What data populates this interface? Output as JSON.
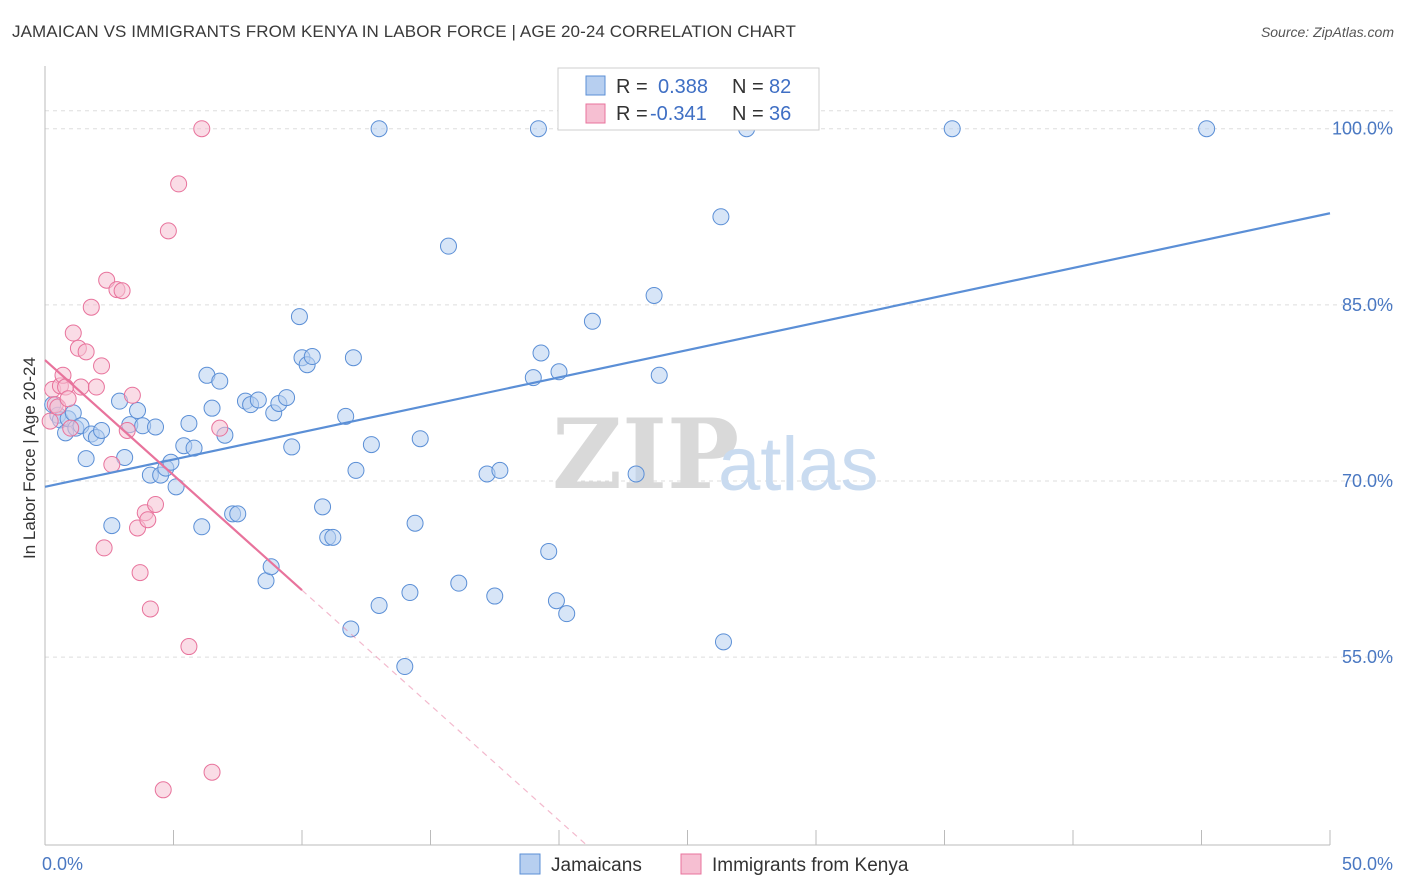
{
  "title": "JAMAICAN VS IMMIGRANTS FROM KENYA IN LABOR FORCE | AGE 20-24 CORRELATION CHART",
  "source": "Source: ZipAtlas.com",
  "watermark": {
    "zip": "ZIP",
    "atlas": "atlas"
  },
  "colors": {
    "blue": "#5b8fd6",
    "blue_fill": "#b7cff0",
    "pink": "#e8739c",
    "pink_fill": "#f6bfd2",
    "axis_label": "#4a78c2",
    "grid": "#dddddd"
  },
  "legend": {
    "items": [
      {
        "r_label": "R =",
        "r_value": "0.388",
        "n_label": "N =",
        "n_value": "82"
      },
      {
        "r_label": "R =",
        "r_value": "-0.341",
        "n_label": "N =",
        "n_value": "36"
      }
    ]
  },
  "bottom_legend": [
    "Jamaicans",
    "Immigrants from Kenya"
  ],
  "chart_data": {
    "type": "scatter",
    "title": "JAMAICAN VS IMMIGRANTS FROM KENYA IN LABOR FORCE | AGE 20-24 CORRELATION CHART",
    "xlabel": "",
    "ylabel": "In Labor Force | Age 20-24",
    "xlim": [
      0,
      50
    ],
    "ylim": [
      39,
      105
    ],
    "x_tick_labels": [
      {
        "value": 0,
        "label": "0.0%"
      },
      {
        "value": 50,
        "label": "50.0%"
      }
    ],
    "y_tick_labels": [
      {
        "value": 100,
        "label": "100.0%"
      },
      {
        "value": 85,
        "label": "85.0%"
      },
      {
        "value": 70,
        "label": "70.0%"
      },
      {
        "value": 55,
        "label": "55.0%"
      }
    ],
    "grid": true,
    "legend_position": "top-center",
    "series": [
      {
        "name": "Jamaicans",
        "color": "#5b8fd6",
        "trend": {
          "x": [
            0,
            50
          ],
          "y": [
            69.5,
            92.8
          ]
        },
        "points": [
          [
            0.3,
            76.5
          ],
          [
            0.5,
            75.6
          ],
          [
            0.6,
            75.2
          ],
          [
            0.8,
            74.1
          ],
          [
            0.9,
            75.3
          ],
          [
            1.1,
            75.8
          ],
          [
            1.2,
            74.5
          ],
          [
            1.4,
            74.7
          ],
          [
            1.6,
            71.9
          ],
          [
            1.8,
            74.0
          ],
          [
            2.0,
            73.7
          ],
          [
            2.2,
            74.3
          ],
          [
            2.6,
            66.2
          ],
          [
            2.9,
            76.8
          ],
          [
            3.1,
            72.0
          ],
          [
            3.3,
            74.8
          ],
          [
            3.6,
            76.0
          ],
          [
            3.8,
            74.7
          ],
          [
            4.1,
            70.5
          ],
          [
            4.3,
            74.6
          ],
          [
            4.5,
            70.5
          ],
          [
            4.7,
            71.1
          ],
          [
            4.9,
            71.6
          ],
          [
            5.1,
            69.5
          ],
          [
            5.4,
            73.0
          ],
          [
            5.6,
            74.9
          ],
          [
            5.8,
            72.8
          ],
          [
            6.1,
            66.1
          ],
          [
            6.3,
            79.0
          ],
          [
            6.5,
            76.2
          ],
          [
            6.8,
            78.5
          ],
          [
            7.0,
            73.9
          ],
          [
            7.3,
            67.2
          ],
          [
            7.5,
            67.2
          ],
          [
            7.8,
            76.8
          ],
          [
            8.0,
            76.5
          ],
          [
            8.3,
            76.9
          ],
          [
            8.6,
            61.5
          ],
          [
            8.8,
            62.7
          ],
          [
            8.9,
            75.8
          ],
          [
            9.1,
            76.6
          ],
          [
            9.4,
            77.1
          ],
          [
            9.6,
            72.9
          ],
          [
            9.9,
            84.0
          ],
          [
            10.0,
            80.5
          ],
          [
            10.2,
            79.9
          ],
          [
            10.4,
            80.6
          ],
          [
            10.8,
            67.8
          ],
          [
            11.0,
            65.2
          ],
          [
            11.2,
            65.2
          ],
          [
            11.7,
            75.5
          ],
          [
            11.9,
            57.4
          ],
          [
            12.0,
            80.5
          ],
          [
            12.1,
            70.9
          ],
          [
            12.7,
            73.1
          ],
          [
            13.0,
            59.4
          ],
          [
            13.0,
            100.0
          ],
          [
            14.0,
            54.2
          ],
          [
            14.2,
            60.5
          ],
          [
            14.4,
            66.4
          ],
          [
            14.6,
            73.6
          ],
          [
            15.7,
            90.0
          ],
          [
            16.1,
            61.3
          ],
          [
            17.2,
            70.6
          ],
          [
            17.5,
            60.2
          ],
          [
            17.7,
            70.9
          ],
          [
            19.0,
            78.8
          ],
          [
            19.2,
            100.0
          ],
          [
            19.3,
            80.9
          ],
          [
            19.6,
            64.0
          ],
          [
            19.9,
            59.8
          ],
          [
            20.0,
            79.3
          ],
          [
            20.3,
            58.7
          ],
          [
            21.3,
            83.6
          ],
          [
            23.0,
            70.6
          ],
          [
            23.7,
            85.8
          ],
          [
            23.9,
            79.0
          ],
          [
            26.3,
            92.5
          ],
          [
            26.4,
            56.3
          ],
          [
            27.3,
            100.0
          ],
          [
            35.3,
            100.0
          ],
          [
            45.2,
            100.0
          ]
        ]
      },
      {
        "name": "Immigrants from Kenya",
        "color": "#e8739c",
        "trend": {
          "x": [
            0,
            10
          ],
          "y": [
            80.3,
            60.7
          ]
        },
        "points": [
          [
            0.2,
            75.1
          ],
          [
            0.3,
            77.8
          ],
          [
            0.4,
            76.5
          ],
          [
            0.5,
            76.3
          ],
          [
            0.6,
            78.1
          ],
          [
            0.7,
            79.0
          ],
          [
            0.8,
            78.0
          ],
          [
            0.9,
            77.0
          ],
          [
            1.0,
            74.5
          ],
          [
            1.1,
            82.6
          ],
          [
            1.3,
            81.3
          ],
          [
            1.4,
            78.0
          ],
          [
            1.6,
            81.0
          ],
          [
            1.8,
            84.8
          ],
          [
            2.0,
            78.0
          ],
          [
            2.2,
            79.8
          ],
          [
            2.3,
            64.3
          ],
          [
            2.4,
            87.1
          ],
          [
            2.6,
            71.4
          ],
          [
            2.8,
            86.3
          ],
          [
            3.0,
            86.2
          ],
          [
            3.2,
            74.3
          ],
          [
            3.4,
            77.3
          ],
          [
            3.6,
            66.0
          ],
          [
            3.7,
            62.2
          ],
          [
            3.9,
            67.3
          ],
          [
            4.0,
            66.7
          ],
          [
            4.1,
            59.1
          ],
          [
            4.3,
            68.0
          ],
          [
            4.6,
            43.7
          ],
          [
            4.8,
            91.3
          ],
          [
            5.2,
            95.3
          ],
          [
            5.6,
            55.9
          ],
          [
            6.1,
            100.0
          ],
          [
            6.5,
            45.2
          ],
          [
            6.8,
            74.5
          ]
        ]
      }
    ]
  }
}
